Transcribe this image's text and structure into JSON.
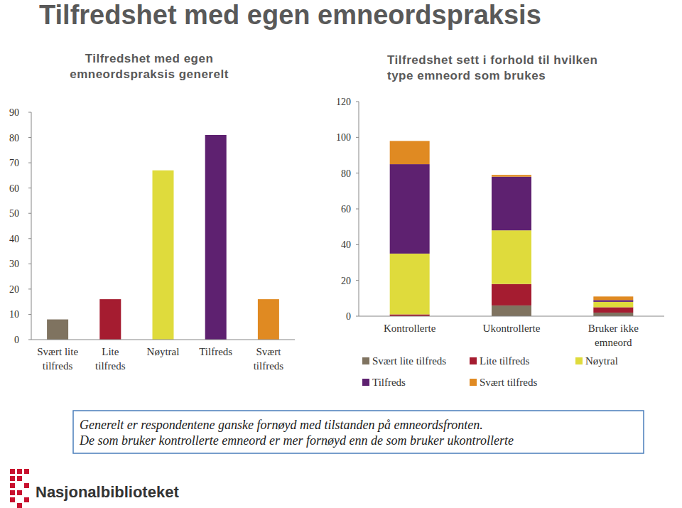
{
  "title": "Tilfredshet med egen emneordspraksis",
  "notes": [
    "Generelt er respondentene ganske fornøyd med tilstanden på emneordsfronten.",
    "De som bruker kontrollerte emneord er mer fornøyd enn de som bruker ukontrollerte"
  ],
  "logo": "Nasjonalbiblioteket",
  "chart_data": [
    {
      "type": "bar",
      "title": "Tilfredshet med egen\nemneordspraksis generelt",
      "categories": [
        "Svært lite\ntilfreds",
        "Lite\ntilfreds",
        "Nøytral",
        "Tilfreds",
        "Svært\ntilfreds"
      ],
      "values": [
        8,
        16,
        67,
        81,
        16
      ],
      "colors": [
        "#7f7360",
        "#a51c30",
        "#dfdb3c",
        "#5e2170",
        "#e08a22"
      ],
      "ylim": [
        0,
        90
      ],
      "yticks": [
        0,
        10,
        20,
        30,
        40,
        50,
        60,
        70,
        80,
        90
      ],
      "grid": false
    },
    {
      "type": "bar",
      "title": "Tilfredshet sett i forhold til hvilken\ntype emneord som brukes",
      "categories": [
        "Kontrollerte",
        "Ukontrollerte",
        "Bruker ikke\nemneord"
      ],
      "series": [
        {
          "name": "Svært lite tilfreds",
          "color": "#7f7360",
          "values": [
            0,
            6,
            2
          ]
        },
        {
          "name": "Lite tilfreds",
          "color": "#a51c30",
          "values": [
            1,
            12,
            3
          ]
        },
        {
          "name": "Nøytral",
          "color": "#dfdb3c",
          "values": [
            34,
            30,
            3
          ]
        },
        {
          "name": "Tilfreds",
          "color": "#5e2170",
          "values": [
            50,
            30,
            1
          ]
        },
        {
          "name": "Svært tilfreds",
          "color": "#e08a22",
          "values": [
            13,
            1,
            2
          ]
        }
      ],
      "stacked": true,
      "legend": "bottom",
      "ylim": [
        0,
        120
      ],
      "yticks": [
        0,
        20,
        40,
        60,
        80,
        100,
        120
      ],
      "grid": false
    }
  ]
}
